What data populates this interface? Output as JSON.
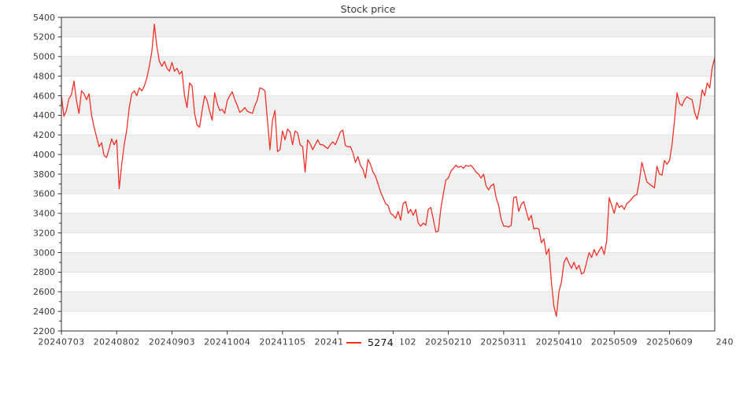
{
  "title": "Stock price",
  "legend": {
    "label": "5274",
    "line_color": "#f03228"
  },
  "chart_data": {
    "type": "line",
    "title": "Stock price",
    "xlabel": "",
    "ylabel": "",
    "ylim": [
      2200,
      5400
    ],
    "y_tick_step": 200,
    "y_minor_tick_step": 100,
    "y_tick_labels": [
      "2200",
      "2400",
      "2600",
      "2800",
      "3000",
      "3200",
      "3400",
      "3600",
      "3800",
      "4000",
      "4200",
      "4400",
      "4600",
      "4800",
      "5000",
      "5200",
      "5400"
    ],
    "x_ticks": [
      {
        "label": "20240703",
        "day": 0
      },
      {
        "label": "20240802",
        "day": 22
      },
      {
        "label": "20240903",
        "day": 44
      },
      {
        "label": "20241004",
        "day": 66
      },
      {
        "label": "20241105",
        "day": 88
      },
      {
        "label": "20241204",
        "day": 110
      },
      {
        "label": "20250102",
        "day": 132
      },
      {
        "label": "20250210",
        "day": 154
      },
      {
        "label": "20250311",
        "day": 176
      },
      {
        "label": "20250410",
        "day": 198
      },
      {
        "label": "20250509",
        "day": 220
      },
      {
        "label": "20250609",
        "day": 242
      },
      {
        "label": "240",
        "day": 264
      }
    ],
    "grid": true,
    "grid_color": "#e3e3e3",
    "stripe_colors": [
      "#f0f0f0",
      "#ffffff"
    ],
    "axis_color": "#333333",
    "tick_label_color": "#3a3a3a",
    "legend_position": "bottom-center",
    "series": [
      {
        "name": "5274",
        "color": "#f03228",
        "values": [
          4600,
          4390,
          4450,
          4570,
          4610,
          4750,
          4550,
          4420,
          4650,
          4620,
          4560,
          4620,
          4400,
          4280,
          4180,
          4080,
          4120,
          3990,
          3970,
          4060,
          4160,
          4100,
          4150,
          3650,
          3900,
          4100,
          4250,
          4480,
          4620,
          4650,
          4600,
          4680,
          4650,
          4700,
          4780,
          4900,
          5050,
          5330,
          5100,
          4950,
          4900,
          4950,
          4880,
          4850,
          4940,
          4850,
          4880,
          4820,
          4850,
          4600,
          4480,
          4730,
          4700,
          4420,
          4300,
          4280,
          4450,
          4600,
          4550,
          4440,
          4350,
          4630,
          4520,
          4450,
          4460,
          4420,
          4550,
          4600,
          4640,
          4560,
          4500,
          4430,
          4450,
          4480,
          4440,
          4430,
          4420,
          4500,
          4560,
          4680,
          4670,
          4650,
          4350,
          4050,
          4350,
          4450,
          4030,
          4050,
          4240,
          4150,
          4260,
          4230,
          4100,
          4240,
          4220,
          4100,
          4080,
          3820,
          4150,
          4110,
          4050,
          4100,
          4150,
          4100,
          4100,
          4080,
          4060,
          4100,
          4130,
          4100,
          4160,
          4230,
          4250,
          4090,
          4080,
          4080,
          4020,
          3920,
          3980,
          3890,
          3850,
          3760,
          3950,
          3900,
          3820,
          3780,
          3700,
          3620,
          3560,
          3500,
          3480,
          3400,
          3380,
          3350,
          3420,
          3330,
          3500,
          3520,
          3400,
          3440,
          3380,
          3440,
          3300,
          3270,
          3300,
          3280,
          3440,
          3460,
          3340,
          3210,
          3220,
          3450,
          3600,
          3740,
          3760,
          3830,
          3860,
          3890,
          3870,
          3880,
          3860,
          3890,
          3880,
          3890,
          3860,
          3820,
          3800,
          3760,
          3800,
          3680,
          3640,
          3680,
          3700,
          3560,
          3480,
          3340,
          3270,
          3270,
          3260,
          3280,
          3560,
          3570,
          3420,
          3490,
          3520,
          3420,
          3330,
          3380,
          3240,
          3250,
          3240,
          3100,
          3140,
          2980,
          3040,
          2700,
          2450,
          2350,
          2600,
          2700,
          2900,
          2950,
          2890,
          2840,
          2900,
          2830,
          2870,
          2780,
          2800,
          2900,
          3000,
          2950,
          3030,
          2970,
          3020,
          3060,
          2980,
          3120,
          3560,
          3480,
          3400,
          3510,
          3460,
          3480,
          3440,
          3500,
          3520,
          3550,
          3580,
          3590,
          3730,
          3920,
          3820,
          3720,
          3700,
          3680,
          3660,
          3880,
          3800,
          3790,
          3940,
          3900,
          3940,
          4100,
          4350,
          4630,
          4520,
          4500,
          4560,
          4590,
          4570,
          4560,
          4430,
          4360,
          4480,
          4660,
          4600,
          4730,
          4680,
          4890,
          4985
        ]
      }
    ]
  }
}
